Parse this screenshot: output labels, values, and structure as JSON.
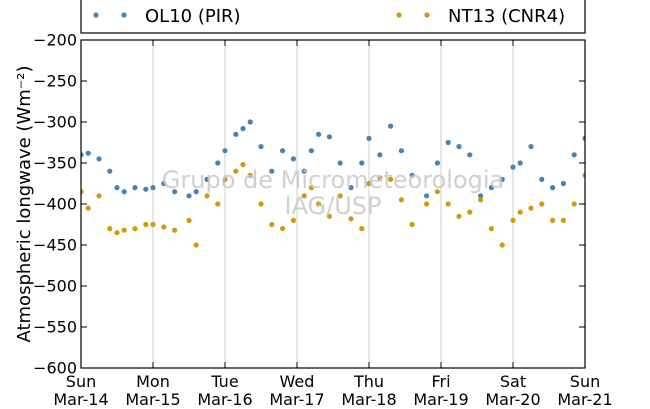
{
  "chart_data": {
    "type": "scatter",
    "ylabel": "Atmospheric longwave (Wm⁻²)",
    "ylim": [
      -600,
      -200
    ],
    "yticks": [
      -600,
      -550,
      -500,
      -450,
      -400,
      -350,
      -300,
      -250,
      -200
    ],
    "ytick_labels": [
      "−600",
      "−550",
      "−500",
      "−450",
      "−400",
      "−350",
      "−300",
      "−250",
      "−200"
    ],
    "xlim": [
      "2016-03-14",
      "2016-03-21"
    ],
    "xticks": [
      {
        "day": "Sun",
        "date": "Mar-14"
      },
      {
        "day": "Mon",
        "date": "Mar-15"
      },
      {
        "day": "Tue",
        "date": "Mar-16"
      },
      {
        "day": "Wed",
        "date": "Mar-17"
      },
      {
        "day": "Thu",
        "date": "Mar-18"
      },
      {
        "day": "Fri",
        "date": "Mar-19"
      },
      {
        "day": "Sat",
        "date": "Mar-20"
      },
      {
        "day": "Sun",
        "date": "Mar-21"
      }
    ],
    "grid": "vertical",
    "legend_position": "top",
    "series": [
      {
        "name": "OL10 (PIR)",
        "color": "#4682b4",
        "days": [
          0,
          0.1,
          0.25,
          0.4,
          0.5,
          0.6,
          0.75,
          0.9,
          1.0,
          1.15,
          1.3,
          1.5,
          1.6,
          1.75,
          1.9,
          2.0,
          2.15,
          2.25,
          2.35,
          2.5,
          2.65,
          2.8,
          2.95,
          3.1,
          3.2,
          3.3,
          3.45,
          3.6,
          3.75,
          3.9,
          4.0,
          4.15,
          4.3,
          4.45,
          4.6,
          4.8,
          4.95,
          5.1,
          5.25,
          5.4,
          5.55,
          5.7,
          5.85,
          6.0,
          6.1,
          6.25,
          6.4,
          6.55,
          6.7,
          6.85,
          7.0
        ],
        "values": [
          -340,
          -338,
          -345,
          -360,
          -380,
          -385,
          -380,
          -382,
          -380,
          -375,
          -385,
          -390,
          -385,
          -370,
          -350,
          -335,
          -315,
          -308,
          -300,
          -330,
          -360,
          -335,
          -345,
          -360,
          -335,
          -315,
          -318,
          -350,
          -380,
          -350,
          -320,
          -340,
          -305,
          -335,
          -365,
          -390,
          -350,
          -325,
          -330,
          -340,
          -390,
          -380,
          -370,
          -355,
          -350,
          -330,
          -370,
          -380,
          -375,
          -340,
          -320
        ]
      },
      {
        "name": "NT13 (CNR4)",
        "color": "#d4980c",
        "days": [
          0,
          0.1,
          0.25,
          0.4,
          0.5,
          0.6,
          0.75,
          0.9,
          1.0,
          1.15,
          1.3,
          1.5,
          1.6,
          1.75,
          1.9,
          2.0,
          2.15,
          2.25,
          2.35,
          2.5,
          2.65,
          2.8,
          2.95,
          3.1,
          3.2,
          3.3,
          3.45,
          3.6,
          3.75,
          3.9,
          4.0,
          4.15,
          4.3,
          4.45,
          4.6,
          4.8,
          4.95,
          5.1,
          5.25,
          5.4,
          5.55,
          5.7,
          5.85,
          6.0,
          6.1,
          6.25,
          6.4,
          6.55,
          6.7,
          6.85,
          7.0
        ],
        "values": [
          -385,
          -405,
          -390,
          -430,
          -435,
          -432,
          -430,
          -425,
          -425,
          -428,
          -432,
          -420,
          -450,
          -390,
          -400,
          -370,
          -360,
          -352,
          -365,
          -400,
          -425,
          -430,
          -420,
          -390,
          -380,
          -400,
          -415,
          -390,
          -418,
          -430,
          -375,
          -368,
          -370,
          -395,
          -425,
          -400,
          -385,
          -400,
          -415,
          -410,
          -395,
          -430,
          -450,
          -420,
          -410,
          -405,
          -400,
          -420,
          -420,
          -400,
          -365
        ]
      }
    ],
    "watermark": [
      "Grupo de Micrometeorologia",
      "IAG/USP"
    ]
  }
}
